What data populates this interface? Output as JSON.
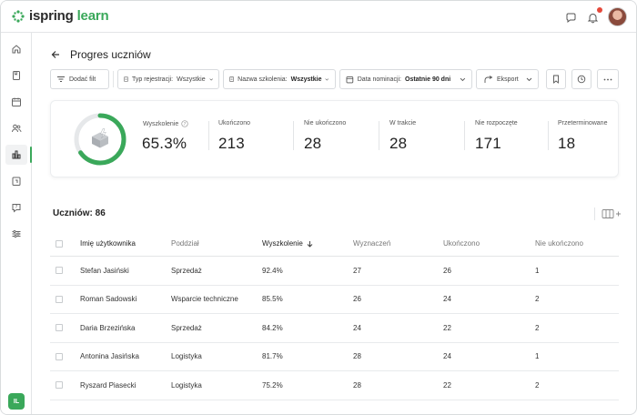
{
  "app": {
    "logo_brand": "ispring",
    "logo_product": "learn"
  },
  "header": {
    "title": "Progres uczniów"
  },
  "toolbar": {
    "add_filter": "Dodać filt",
    "reg_type_label": "Typ rejestracji:",
    "reg_type_value": "Wszystkie",
    "training_label": "Nazwa szkolenia:",
    "training_value": "Wszystkie",
    "date_label": "Data nominacji:",
    "date_value": "Ostatnie 90 dni",
    "export": "Eksport"
  },
  "stats": {
    "ring_percent": 65.3,
    "trained_label": "Wyszkolenie",
    "trained_value": "65.3%",
    "completed_label": "Ukończono",
    "completed_value": "213",
    "not_completed_label": "Nie ukończono",
    "not_completed_value": "28",
    "in_progress_label": "W trakcie",
    "in_progress_value": "28",
    "not_started_label": "Nie rozpoczęte",
    "not_started_value": "171",
    "overdue_label": "Przeterminowane",
    "overdue_value": "18"
  },
  "table": {
    "count_label": "Uczniów: 86",
    "headers": {
      "name": "Imię użytkownika",
      "dept": "Poddział",
      "trained": "Wyszkolenie",
      "assigned": "Wyznaczeń",
      "completed": "Ukończono",
      "not_completed": "Nie ukończono"
    },
    "rows": [
      {
        "name": "Stefan Jasiński",
        "dept": "Sprzedaż",
        "trained": "92.4%",
        "assigned": "27",
        "completed": "26",
        "not_completed": "1"
      },
      {
        "name": "Roman Sadowski",
        "dept": "Wsparcie techniczne",
        "trained": "85.5%",
        "assigned": "26",
        "completed": "24",
        "not_completed": "2"
      },
      {
        "name": "Daria Brzezińska",
        "dept": "Sprzedaż",
        "trained": "84.2%",
        "assigned": "24",
        "completed": "22",
        "not_completed": "2"
      },
      {
        "name": "Antonina Jasińska",
        "dept": "Logistyka",
        "trained": "81.7%",
        "assigned": "28",
        "completed": "24",
        "not_completed": "1"
      },
      {
        "name": "Ryszard Piasecki",
        "dept": "Logistyka",
        "trained": "75.2%",
        "assigned": "28",
        "completed": "22",
        "not_completed": "2"
      }
    ]
  },
  "sidebar": {
    "user_badge": "IL"
  },
  "colors": {
    "accent": "#3aa85a",
    "ring_track": "#e6e8ea",
    "badge_red": "#e5483a"
  },
  "icons": [
    "ispring-logo-icon",
    "chat-icon",
    "bell-icon",
    "home-icon",
    "book-icon",
    "calendar-icon",
    "users-icon",
    "chart-icon",
    "reports-icon",
    "help-icon",
    "settings-icon",
    "back-arrow-icon",
    "filter-icon",
    "doc-icon",
    "calendar-icon",
    "export-icon",
    "bookmark-icon",
    "clock-icon",
    "more-icon",
    "info-icon",
    "sort-down-icon",
    "columns-icon"
  ]
}
